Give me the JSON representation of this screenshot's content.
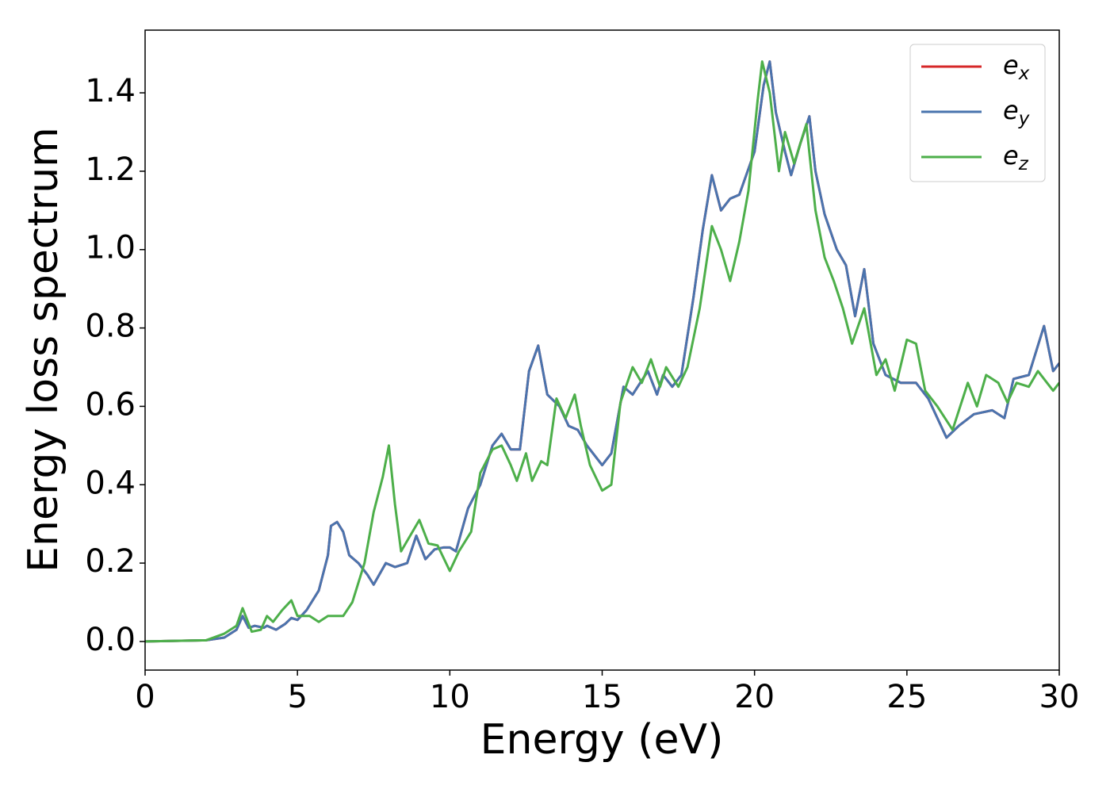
{
  "chart_data": {
    "type": "line",
    "xlabel": "Energy (eV)",
    "ylabel": "Energy loss spectrum",
    "xlim": [
      0,
      30
    ],
    "xticks": [
      0,
      5,
      10,
      15,
      20,
      25,
      30
    ],
    "ylim": [
      -0.073,
      1.56
    ],
    "yticks": [
      {
        "value": 0,
        "label": "0.0"
      },
      {
        "value": 0.2,
        "label": "0.2"
      },
      {
        "value": 0.4,
        "label": "0.4"
      },
      {
        "value": 0.6,
        "label": "0.6"
      },
      {
        "value": 0.8,
        "label": "0.8"
      },
      {
        "value": 1.0,
        "label": "1.0"
      },
      {
        "value": 1.2,
        "label": "1.2"
      },
      {
        "value": 1.4,
        "label": "1.4"
      }
    ],
    "legend": "upper right",
    "grid": false,
    "series": [
      {
        "name": "ex",
        "color": "#d62728",
        "x": [
          0,
          2,
          2.6,
          3.0,
          3.2,
          3.4,
          3.6,
          3.9,
          4.0,
          4.3,
          4.6,
          4.8,
          5.0,
          5.3,
          5.7,
          6.0,
          6.1,
          6.3,
          6.5,
          6.7,
          7.0,
          7.3,
          7.5,
          7.9,
          8.2,
          8.6,
          8.9,
          9.2,
          9.5,
          9.8,
          10.0,
          10.2,
          10.6,
          11.0,
          11.4,
          11.7,
          12.0,
          12.3,
          12.6,
          12.9,
          13.2,
          13.6,
          13.9,
          14.2,
          14.5,
          15.0,
          15.3,
          15.7,
          16.0,
          16.5,
          16.8,
          17.0,
          17.3,
          17.6,
          18.0,
          18.3,
          18.6,
          18.9,
          19.2,
          19.5,
          20.0,
          20.3,
          20.5,
          20.7,
          21.0,
          21.2,
          21.5,
          21.8,
          22.0,
          22.3,
          22.7,
          23.0,
          23.3,
          23.6,
          23.9,
          24.3,
          24.8,
          25.3,
          25.7,
          26.0,
          26.3,
          26.7,
          27.2,
          27.8,
          28.2,
          28.5,
          29.0,
          29.5,
          29.8,
          30
        ],
        "values": [
          0,
          0.003,
          0.01,
          0.03,
          0.065,
          0.035,
          0.04,
          0.035,
          0.04,
          0.03,
          0.045,
          0.06,
          0.055,
          0.08,
          0.13,
          0.22,
          0.295,
          0.305,
          0.28,
          0.22,
          0.2,
          0.17,
          0.145,
          0.2,
          0.19,
          0.2,
          0.27,
          0.21,
          0.235,
          0.24,
          0.24,
          0.23,
          0.34,
          0.4,
          0.5,
          0.53,
          0.49,
          0.49,
          0.69,
          0.755,
          0.63,
          0.6,
          0.55,
          0.54,
          0.5,
          0.45,
          0.48,
          0.65,
          0.63,
          0.69,
          0.63,
          0.68,
          0.65,
          0.68,
          0.88,
          1.05,
          1.19,
          1.1,
          1.13,
          1.14,
          1.25,
          1.42,
          1.48,
          1.35,
          1.25,
          1.19,
          1.27,
          1.34,
          1.2,
          1.09,
          1.0,
          0.96,
          0.83,
          0.95,
          0.76,
          0.68,
          0.66,
          0.66,
          0.62,
          0.57,
          0.52,
          0.55,
          0.58,
          0.59,
          0.57,
          0.67,
          0.68,
          0.805,
          0.69,
          0.71
        ]
      },
      {
        "name": "ey",
        "color": "#4a74ae",
        "x": [
          0,
          2,
          2.6,
          3.0,
          3.2,
          3.4,
          3.6,
          3.9,
          4.0,
          4.3,
          4.6,
          4.8,
          5.0,
          5.3,
          5.7,
          6.0,
          6.1,
          6.3,
          6.5,
          6.7,
          7.0,
          7.3,
          7.5,
          7.9,
          8.2,
          8.6,
          8.9,
          9.2,
          9.5,
          9.8,
          10.0,
          10.2,
          10.6,
          11.0,
          11.4,
          11.7,
          12.0,
          12.3,
          12.6,
          12.9,
          13.2,
          13.6,
          13.9,
          14.2,
          14.5,
          15.0,
          15.3,
          15.7,
          16.0,
          16.5,
          16.8,
          17.0,
          17.3,
          17.6,
          18.0,
          18.3,
          18.6,
          18.9,
          19.2,
          19.5,
          20.0,
          20.3,
          20.5,
          20.7,
          21.0,
          21.2,
          21.5,
          21.8,
          22.0,
          22.3,
          22.7,
          23.0,
          23.3,
          23.6,
          23.9,
          24.3,
          24.8,
          25.3,
          25.7,
          26.0,
          26.3,
          26.7,
          27.2,
          27.8,
          28.2,
          28.5,
          29.0,
          29.5,
          29.8,
          30
        ],
        "values": [
          0,
          0.003,
          0.01,
          0.03,
          0.065,
          0.035,
          0.04,
          0.035,
          0.04,
          0.03,
          0.045,
          0.06,
          0.055,
          0.08,
          0.13,
          0.22,
          0.295,
          0.305,
          0.28,
          0.22,
          0.2,
          0.17,
          0.145,
          0.2,
          0.19,
          0.2,
          0.27,
          0.21,
          0.235,
          0.24,
          0.24,
          0.23,
          0.34,
          0.4,
          0.5,
          0.53,
          0.49,
          0.49,
          0.69,
          0.755,
          0.63,
          0.6,
          0.55,
          0.54,
          0.5,
          0.45,
          0.48,
          0.65,
          0.63,
          0.69,
          0.63,
          0.68,
          0.65,
          0.68,
          0.88,
          1.05,
          1.19,
          1.1,
          1.13,
          1.14,
          1.25,
          1.42,
          1.48,
          1.35,
          1.25,
          1.19,
          1.27,
          1.34,
          1.2,
          1.09,
          1.0,
          0.96,
          0.83,
          0.95,
          0.76,
          0.68,
          0.66,
          0.66,
          0.62,
          0.57,
          0.52,
          0.55,
          0.58,
          0.59,
          0.57,
          0.67,
          0.68,
          0.805,
          0.69,
          0.71
        ]
      },
      {
        "name": "ez",
        "color": "#4daf4a",
        "x": [
          0,
          2,
          2.6,
          3.0,
          3.2,
          3.5,
          3.8,
          4.0,
          4.2,
          4.5,
          4.8,
          5.0,
          5.4,
          5.7,
          6.0,
          6.5,
          6.8,
          7.2,
          7.5,
          7.8,
          8.0,
          8.2,
          8.4,
          8.7,
          9.0,
          9.3,
          9.6,
          10.0,
          10.3,
          10.7,
          11.0,
          11.4,
          11.7,
          12.0,
          12.2,
          12.5,
          12.7,
          13.0,
          13.2,
          13.5,
          13.8,
          14.1,
          14.3,
          14.6,
          15.0,
          15.3,
          15.6,
          16.0,
          16.3,
          16.6,
          16.9,
          17.1,
          17.5,
          17.8,
          18.2,
          18.6,
          18.9,
          19.2,
          19.5,
          19.8,
          20.1,
          20.25,
          20.5,
          20.8,
          21.0,
          21.3,
          21.7,
          22.0,
          22.3,
          22.6,
          22.9,
          23.2,
          23.6,
          24.0,
          24.3,
          24.6,
          25.0,
          25.3,
          25.6,
          26.0,
          26.5,
          27.0,
          27.3,
          27.6,
          28.0,
          28.3,
          28.6,
          29.0,
          29.3,
          29.8,
          30
        ],
        "values": [
          0,
          0.003,
          0.02,
          0.04,
          0.085,
          0.025,
          0.03,
          0.065,
          0.05,
          0.08,
          0.105,
          0.065,
          0.065,
          0.05,
          0.065,
          0.065,
          0.1,
          0.2,
          0.33,
          0.42,
          0.5,
          0.35,
          0.23,
          0.27,
          0.31,
          0.25,
          0.245,
          0.18,
          0.23,
          0.28,
          0.43,
          0.49,
          0.5,
          0.45,
          0.41,
          0.48,
          0.41,
          0.46,
          0.45,
          0.62,
          0.57,
          0.63,
          0.55,
          0.45,
          0.385,
          0.4,
          0.61,
          0.7,
          0.66,
          0.72,
          0.65,
          0.7,
          0.65,
          0.7,
          0.85,
          1.06,
          1.0,
          0.92,
          1.02,
          1.15,
          1.38,
          1.48,
          1.4,
          1.2,
          1.3,
          1.22,
          1.32,
          1.1,
          0.98,
          0.92,
          0.85,
          0.76,
          0.85,
          0.68,
          0.72,
          0.64,
          0.77,
          0.76,
          0.64,
          0.6,
          0.54,
          0.66,
          0.6,
          0.68,
          0.66,
          0.61,
          0.66,
          0.65,
          0.69,
          0.64,
          0.66
        ]
      }
    ]
  }
}
